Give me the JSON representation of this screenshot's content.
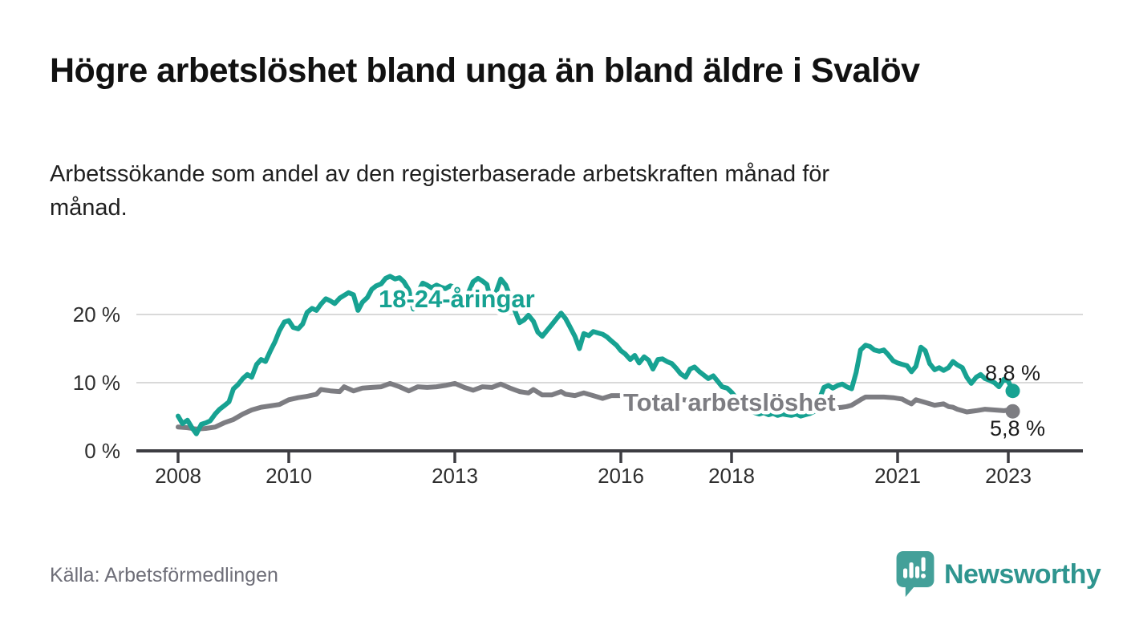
{
  "title": "Högre arbetslöshet bland unga än bland äldre i Svalöv",
  "subtitle": "Arbetssökande som andel av den registerbaserade arbetskraften månad för månad.",
  "source": "Källa: Arbetsförmedlingen",
  "brand": {
    "name": "Newsworthy",
    "icon": "bar-chart-speech-bubble-icon",
    "text_color": "#2f958f",
    "icon_color": "#43a099"
  },
  "colors": {
    "young_series": "#17a292",
    "total_series": "#7d7d82",
    "grid": "#d9d9d9",
    "axis": "#3d3d42",
    "tick_text": "#2e2e2e",
    "annotation_text": "#1a1a1a",
    "background": "#ffffff"
  },
  "chart_data": {
    "type": "line",
    "title": "Högre arbetslöshet bland unga än bland äldre i Svalöv",
    "xlabel": "",
    "ylabel": "Arbetssökande som andel av den registerbaserade arbetskraften",
    "grid": true,
    "x_axis": {
      "range": [
        2007.25,
        2024.35
      ],
      "ticks": [
        2008,
        2010,
        2013,
        2016,
        2018,
        2021,
        2023
      ],
      "tick_labels": [
        "2008",
        "2010",
        "2013",
        "2016",
        "2018",
        "2021",
        "2023"
      ]
    },
    "y_axis": {
      "range": [
        0,
        27.5
      ],
      "ticks": [
        0,
        10,
        20
      ],
      "tick_labels": [
        "0 %",
        "10 %",
        "20 %"
      ]
    },
    "series": [
      {
        "name": "Total arbetslöshet",
        "color": "#7d7d82",
        "end_label": "5,8 %",
        "end_value": 5.8,
        "points": [
          [
            2008.0,
            3.5
          ],
          [
            2008.17,
            3.4
          ],
          [
            2008.33,
            3.2
          ],
          [
            2008.5,
            3.3
          ],
          [
            2008.67,
            3.5
          ],
          [
            2008.83,
            4.1
          ],
          [
            2009.0,
            4.6
          ],
          [
            2009.17,
            5.4
          ],
          [
            2009.33,
            6.0
          ],
          [
            2009.5,
            6.4
          ],
          [
            2009.67,
            6.6
          ],
          [
            2009.83,
            6.8
          ],
          [
            2010.0,
            7.5
          ],
          [
            2010.17,
            7.8
          ],
          [
            2010.33,
            8.0
          ],
          [
            2010.5,
            8.3
          ],
          [
            2010.58,
            9.0
          ],
          [
            2010.75,
            8.8
          ],
          [
            2010.92,
            8.7
          ],
          [
            2011.0,
            9.4
          ],
          [
            2011.17,
            8.8
          ],
          [
            2011.33,
            9.2
          ],
          [
            2011.5,
            9.3
          ],
          [
            2011.67,
            9.4
          ],
          [
            2011.83,
            9.9
          ],
          [
            2012.0,
            9.4
          ],
          [
            2012.17,
            8.8
          ],
          [
            2012.33,
            9.4
          ],
          [
            2012.5,
            9.3
          ],
          [
            2012.67,
            9.4
          ],
          [
            2012.83,
            9.6
          ],
          [
            2013.0,
            9.9
          ],
          [
            2013.17,
            9.3
          ],
          [
            2013.33,
            8.9
          ],
          [
            2013.5,
            9.4
          ],
          [
            2013.67,
            9.3
          ],
          [
            2013.83,
            9.8
          ],
          [
            2014.0,
            9.2
          ],
          [
            2014.17,
            8.7
          ],
          [
            2014.33,
            8.5
          ],
          [
            2014.42,
            9.0
          ],
          [
            2014.58,
            8.2
          ],
          [
            2014.75,
            8.2
          ],
          [
            2014.92,
            8.7
          ],
          [
            2015.0,
            8.3
          ],
          [
            2015.17,
            8.1
          ],
          [
            2015.33,
            8.5
          ],
          [
            2015.5,
            8.1
          ],
          [
            2015.67,
            7.7
          ],
          [
            2015.83,
            8.1
          ],
          [
            2016.0,
            8.1
          ],
          [
            2016.17,
            7.9
          ],
          [
            2016.33,
            8.0
          ],
          [
            2016.5,
            7.8
          ],
          [
            2016.67,
            7.9
          ],
          [
            2016.83,
            7.8
          ],
          [
            2017.0,
            7.6
          ],
          [
            2017.25,
            7.4
          ],
          [
            2017.5,
            7.2
          ],
          [
            2017.75,
            7.0
          ],
          [
            2018.0,
            6.9
          ],
          [
            2018.25,
            6.7
          ],
          [
            2018.5,
            6.6
          ],
          [
            2018.75,
            6.5
          ],
          [
            2019.0,
            6.4
          ],
          [
            2019.25,
            6.3
          ],
          [
            2019.5,
            6.3
          ],
          [
            2019.75,
            6.2
          ],
          [
            2020.0,
            6.4
          ],
          [
            2020.08,
            6.5
          ],
          [
            2020.17,
            6.7
          ],
          [
            2020.33,
            7.5
          ],
          [
            2020.42,
            7.9
          ],
          [
            2020.58,
            7.9
          ],
          [
            2020.75,
            7.9
          ],
          [
            2020.92,
            7.8
          ],
          [
            2021.0,
            7.7
          ],
          [
            2021.08,
            7.6
          ],
          [
            2021.17,
            7.2
          ],
          [
            2021.25,
            6.9
          ],
          [
            2021.33,
            7.5
          ],
          [
            2021.5,
            7.1
          ],
          [
            2021.67,
            6.7
          ],
          [
            2021.83,
            6.9
          ],
          [
            2021.92,
            6.5
          ],
          [
            2022.0,
            6.4
          ],
          [
            2022.08,
            6.1
          ],
          [
            2022.25,
            5.7
          ],
          [
            2022.42,
            5.9
          ],
          [
            2022.58,
            6.1
          ],
          [
            2022.75,
            6.0
          ],
          [
            2022.92,
            5.9
          ],
          [
            2023.0,
            6.0
          ],
          [
            2023.08,
            5.8
          ]
        ]
      },
      {
        "name": "18-24-åringar",
        "color": "#17a292",
        "end_label": "8,8 %",
        "end_value": 8.8,
        "points": [
          [
            2008.0,
            5.1
          ],
          [
            2008.08,
            4.0
          ],
          [
            2008.17,
            4.5
          ],
          [
            2008.25,
            3.4
          ],
          [
            2008.33,
            2.5
          ],
          [
            2008.42,
            3.9
          ],
          [
            2008.5,
            4.1
          ],
          [
            2008.58,
            4.4
          ],
          [
            2008.67,
            5.4
          ],
          [
            2008.75,
            6.1
          ],
          [
            2008.83,
            6.6
          ],
          [
            2008.92,
            7.2
          ],
          [
            2009.0,
            9.1
          ],
          [
            2009.08,
            9.7
          ],
          [
            2009.17,
            10.6
          ],
          [
            2009.25,
            11.2
          ],
          [
            2009.33,
            10.8
          ],
          [
            2009.42,
            12.7
          ],
          [
            2009.5,
            13.4
          ],
          [
            2009.58,
            13.1
          ],
          [
            2009.67,
            14.7
          ],
          [
            2009.75,
            16.0
          ],
          [
            2009.83,
            17.6
          ],
          [
            2009.92,
            18.9
          ],
          [
            2010.0,
            19.1
          ],
          [
            2010.08,
            18.1
          ],
          [
            2010.17,
            17.9
          ],
          [
            2010.25,
            18.6
          ],
          [
            2010.33,
            20.3
          ],
          [
            2010.42,
            20.9
          ],
          [
            2010.5,
            20.6
          ],
          [
            2010.58,
            21.5
          ],
          [
            2010.67,
            22.3
          ],
          [
            2010.75,
            22.0
          ],
          [
            2010.83,
            21.6
          ],
          [
            2010.92,
            22.4
          ],
          [
            2011.0,
            22.8
          ],
          [
            2011.08,
            23.2
          ],
          [
            2011.17,
            22.9
          ],
          [
            2011.25,
            20.6
          ],
          [
            2011.33,
            21.8
          ],
          [
            2011.42,
            22.5
          ],
          [
            2011.5,
            23.7
          ],
          [
            2011.58,
            24.2
          ],
          [
            2011.67,
            24.5
          ],
          [
            2011.75,
            25.3
          ],
          [
            2011.83,
            25.6
          ],
          [
            2011.92,
            25.2
          ],
          [
            2012.0,
            25.4
          ],
          [
            2012.08,
            24.8
          ],
          [
            2012.17,
            23.6
          ],
          [
            2012.25,
            20.8
          ],
          [
            2012.33,
            23.2
          ],
          [
            2012.42,
            24.6
          ],
          [
            2012.5,
            24.3
          ],
          [
            2012.58,
            23.9
          ],
          [
            2012.67,
            24.3
          ],
          [
            2012.75,
            24.0
          ],
          [
            2012.83,
            23.8
          ],
          [
            2012.92,
            24.2
          ],
          [
            2013.0,
            24.0
          ],
          [
            2013.08,
            23.5
          ],
          [
            2013.17,
            21.0
          ],
          [
            2013.25,
            23.3
          ],
          [
            2013.33,
            24.8
          ],
          [
            2013.42,
            25.3
          ],
          [
            2013.5,
            24.9
          ],
          [
            2013.58,
            24.4
          ],
          [
            2013.67,
            21.4
          ],
          [
            2013.75,
            23.4
          ],
          [
            2013.83,
            25.2
          ],
          [
            2013.92,
            24.3
          ],
          [
            2014.0,
            22.6
          ],
          [
            2014.08,
            20.7
          ],
          [
            2014.17,
            18.8
          ],
          [
            2014.25,
            19.2
          ],
          [
            2014.33,
            19.9
          ],
          [
            2014.42,
            19.0
          ],
          [
            2014.5,
            17.4
          ],
          [
            2014.58,
            16.8
          ],
          [
            2014.67,
            17.7
          ],
          [
            2014.75,
            18.5
          ],
          [
            2014.83,
            19.3
          ],
          [
            2014.92,
            20.2
          ],
          [
            2015.0,
            19.4
          ],
          [
            2015.08,
            18.2
          ],
          [
            2015.17,
            16.8
          ],
          [
            2015.25,
            15.0
          ],
          [
            2015.33,
            17.2
          ],
          [
            2015.42,
            16.9
          ],
          [
            2015.5,
            17.5
          ],
          [
            2015.58,
            17.3
          ],
          [
            2015.67,
            17.1
          ],
          [
            2015.75,
            16.7
          ],
          [
            2015.83,
            16.1
          ],
          [
            2015.92,
            15.5
          ],
          [
            2016.0,
            14.7
          ],
          [
            2016.08,
            14.2
          ],
          [
            2016.17,
            13.4
          ],
          [
            2016.25,
            14.0
          ],
          [
            2016.33,
            12.9
          ],
          [
            2016.42,
            13.8
          ],
          [
            2016.5,
            13.3
          ],
          [
            2016.58,
            12.0
          ],
          [
            2016.67,
            13.4
          ],
          [
            2016.75,
            13.5
          ],
          [
            2016.83,
            13.1
          ],
          [
            2016.92,
            12.8
          ],
          [
            2017.0,
            12.1
          ],
          [
            2017.08,
            11.3
          ],
          [
            2017.17,
            10.8
          ],
          [
            2017.25,
            12.0
          ],
          [
            2017.33,
            12.3
          ],
          [
            2017.42,
            11.6
          ],
          [
            2017.5,
            11.1
          ],
          [
            2017.58,
            10.6
          ],
          [
            2017.67,
            11.0
          ],
          [
            2017.75,
            10.2
          ],
          [
            2017.83,
            9.4
          ],
          [
            2017.92,
            9.2
          ],
          [
            2018.0,
            8.6
          ],
          [
            2018.08,
            7.8
          ],
          [
            2018.17,
            7.0
          ],
          [
            2018.25,
            6.4
          ],
          [
            2018.33,
            5.9
          ],
          [
            2018.42,
            5.6
          ],
          [
            2018.5,
            5.4
          ],
          [
            2018.58,
            5.6
          ],
          [
            2018.67,
            5.3
          ],
          [
            2018.75,
            5.5
          ],
          [
            2018.83,
            5.2
          ],
          [
            2018.92,
            5.4
          ],
          [
            2019.0,
            5.3
          ],
          [
            2019.08,
            5.2
          ],
          [
            2019.17,
            5.4
          ],
          [
            2019.25,
            5.1
          ],
          [
            2019.33,
            5.3
          ],
          [
            2019.42,
            5.5
          ],
          [
            2019.5,
            5.8
          ],
          [
            2019.58,
            7.5
          ],
          [
            2019.67,
            9.3
          ],
          [
            2019.75,
            9.6
          ],
          [
            2019.83,
            9.2
          ],
          [
            2019.92,
            9.6
          ],
          [
            2020.0,
            9.8
          ],
          [
            2020.08,
            9.4
          ],
          [
            2020.17,
            9.1
          ],
          [
            2020.25,
            11.5
          ],
          [
            2020.33,
            14.8
          ],
          [
            2020.42,
            15.5
          ],
          [
            2020.5,
            15.3
          ],
          [
            2020.58,
            14.8
          ],
          [
            2020.67,
            14.6
          ],
          [
            2020.75,
            14.8
          ],
          [
            2020.83,
            14.1
          ],
          [
            2020.92,
            13.2
          ],
          [
            2021.0,
            12.9
          ],
          [
            2021.08,
            12.7
          ],
          [
            2021.17,
            12.5
          ],
          [
            2021.25,
            11.6
          ],
          [
            2021.33,
            12.4
          ],
          [
            2021.42,
            15.2
          ],
          [
            2021.5,
            14.7
          ],
          [
            2021.58,
            12.8
          ],
          [
            2021.67,
            11.9
          ],
          [
            2021.75,
            12.2
          ],
          [
            2021.83,
            11.8
          ],
          [
            2021.92,
            12.2
          ],
          [
            2022.0,
            13.1
          ],
          [
            2022.08,
            12.6
          ],
          [
            2022.17,
            12.2
          ],
          [
            2022.25,
            10.8
          ],
          [
            2022.33,
            9.9
          ],
          [
            2022.42,
            10.8
          ],
          [
            2022.5,
            11.2
          ],
          [
            2022.58,
            10.6
          ],
          [
            2022.67,
            10.3
          ],
          [
            2022.75,
            10.0
          ],
          [
            2022.83,
            9.4
          ],
          [
            2022.92,
            10.5
          ],
          [
            2023.0,
            10.2
          ],
          [
            2023.08,
            8.8
          ]
        ]
      }
    ],
    "legend_position": "inline-labels"
  }
}
